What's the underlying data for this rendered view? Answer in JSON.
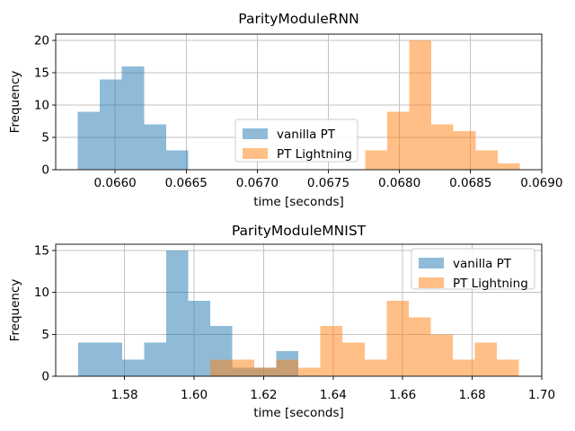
{
  "figure": {
    "background": "#ffffff",
    "grid_color": "#c2c2c2",
    "spine_color": "#1a1a1a",
    "text_color": "#000000",
    "legend_border_color": "#cccccc"
  },
  "chart_data": [
    {
      "type": "histogram",
      "title": "ParityModuleRNN",
      "xlabel": "time [seconds]",
      "ylabel": "Frequency",
      "grid": true,
      "legend_position": "lower center",
      "legend_entries": [
        "vanilla PT",
        "PT Lightning"
      ],
      "xlim": [
        0.065582,
        0.069001
      ],
      "ylim": [
        0,
        21
      ],
      "xticks": [
        {
          "value": 0.066,
          "label": "0.0660"
        },
        {
          "value": 0.0665,
          "label": "0.0665"
        },
        {
          "value": 0.067,
          "label": "0.0670"
        },
        {
          "value": 0.0675,
          "label": "0.0675"
        },
        {
          "value": 0.068,
          "label": "0.0680"
        },
        {
          "value": 0.0685,
          "label": "0.0685"
        },
        {
          "value": 0.069,
          "label": "0.0690"
        }
      ],
      "yticks": [
        0,
        5,
        10,
        15,
        20
      ],
      "bin_start": 0.065737,
      "bin_width": 0.00015545,
      "series": [
        {
          "name": "vanilla PT",
          "color": "#1f77b4",
          "alpha": 0.5,
          "counts": [
            9,
            14,
            16,
            7,
            3,
            0,
            0,
            0,
            0,
            0,
            0,
            0,
            0,
            0,
            0,
            0,
            0,
            0,
            0,
            0
          ]
        },
        {
          "name": "PT Lightning",
          "color": "#ff7f0e",
          "alpha": 0.5,
          "counts": [
            0,
            0,
            0,
            0,
            0,
            0,
            0,
            0,
            0,
            0,
            0,
            0,
            0,
            3,
            9,
            20,
            7,
            6,
            3,
            1
          ]
        }
      ]
    },
    {
      "type": "histogram",
      "title": "ParityModuleMNIST",
      "xlabel": "time [seconds]",
      "ylabel": "Frequency",
      "grid": true,
      "legend_position": "upper right",
      "legend_entries": [
        "vanilla PT",
        "PT Lightning"
      ],
      "xlim": [
        1.5602,
        1.7
      ],
      "ylim": [
        0,
        15.75
      ],
      "xticks": [
        {
          "value": 1.58,
          "label": "1.58"
        },
        {
          "value": 1.6,
          "label": "1.60"
        },
        {
          "value": 1.62,
          "label": "1.62"
        },
        {
          "value": 1.64,
          "label": "1.64"
        },
        {
          "value": 1.66,
          "label": "1.66"
        },
        {
          "value": 1.68,
          "label": "1.68"
        },
        {
          "value": 1.7,
          "label": "1.70"
        }
      ],
      "yticks": [
        0,
        5,
        10,
        15
      ],
      "bin_start": 1.5667,
      "bin_width": 0.006333,
      "series": [
        {
          "name": "vanilla PT",
          "color": "#1f77b4",
          "alpha": 0.5,
          "counts": [
            4,
            4,
            2,
            4,
            15,
            9,
            6,
            1,
            1,
            3,
            0,
            0,
            0,
            0,
            0,
            0,
            0,
            0,
            0,
            0
          ]
        },
        {
          "name": "PT Lightning",
          "color": "#ff7f0e",
          "alpha": 0.5,
          "counts": [
            0,
            0,
            0,
            0,
            0,
            0,
            2,
            2,
            1,
            2,
            1,
            6,
            4,
            2,
            9,
            7,
            5,
            2,
            4,
            2
          ]
        }
      ]
    }
  ]
}
